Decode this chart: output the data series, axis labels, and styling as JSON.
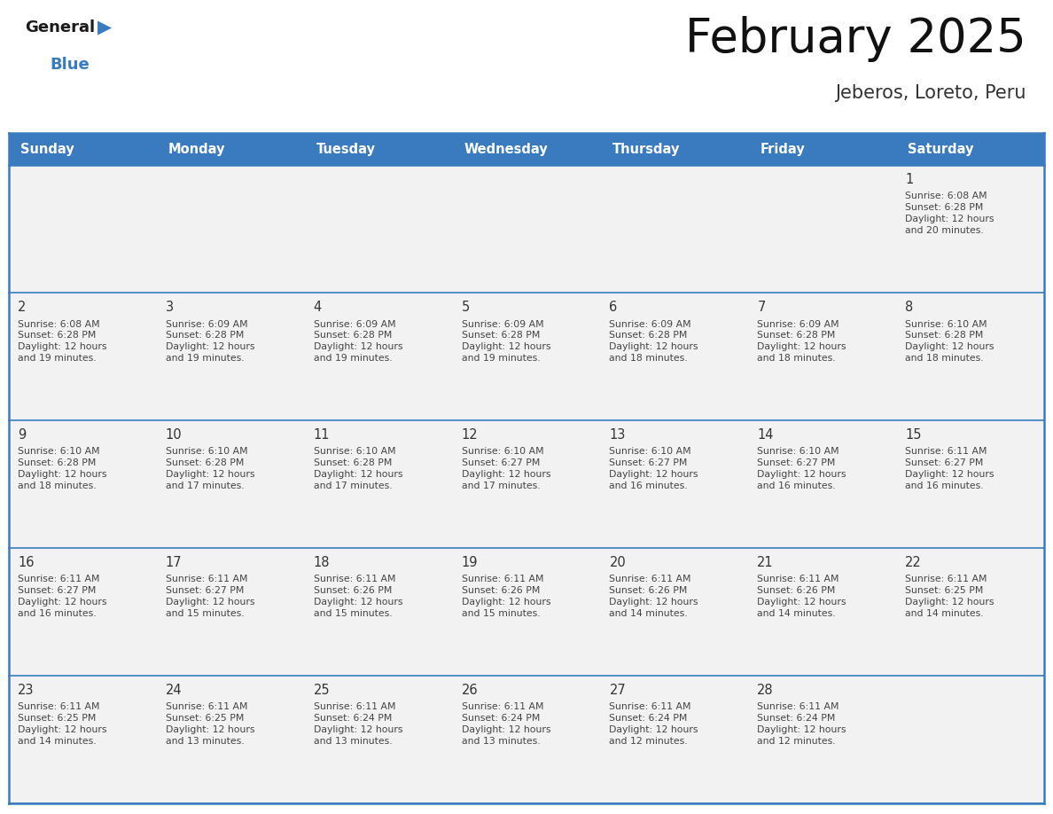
{
  "title": "February 2025",
  "subtitle": "Jeberos, Loreto, Peru",
  "header_bg": "#3a7abf",
  "header_text_color": "#ffffff",
  "cell_bg": "#f2f2f2",
  "cell_bg_alt": "#ffffff",
  "day_headers": [
    "Sunday",
    "Monday",
    "Tuesday",
    "Wednesday",
    "Thursday",
    "Friday",
    "Saturday"
  ],
  "border_color": "#3a7abf",
  "text_color": "#444444",
  "num_color": "#333333",
  "calendar": [
    [
      null,
      null,
      null,
      null,
      null,
      null,
      {
        "day": "1",
        "sunrise": "6:08 AM",
        "sunset": "6:28 PM",
        "daylight": "12 hours\nand 20 minutes."
      }
    ],
    [
      {
        "day": "2",
        "sunrise": "6:08 AM",
        "sunset": "6:28 PM",
        "daylight": "12 hours\nand 19 minutes."
      },
      {
        "day": "3",
        "sunrise": "6:09 AM",
        "sunset": "6:28 PM",
        "daylight": "12 hours\nand 19 minutes."
      },
      {
        "day": "4",
        "sunrise": "6:09 AM",
        "sunset": "6:28 PM",
        "daylight": "12 hours\nand 19 minutes."
      },
      {
        "day": "5",
        "sunrise": "6:09 AM",
        "sunset": "6:28 PM",
        "daylight": "12 hours\nand 19 minutes."
      },
      {
        "day": "6",
        "sunrise": "6:09 AM",
        "sunset": "6:28 PM",
        "daylight": "12 hours\nand 18 minutes."
      },
      {
        "day": "7",
        "sunrise": "6:09 AM",
        "sunset": "6:28 PM",
        "daylight": "12 hours\nand 18 minutes."
      },
      {
        "day": "8",
        "sunrise": "6:10 AM",
        "sunset": "6:28 PM",
        "daylight": "12 hours\nand 18 minutes."
      }
    ],
    [
      {
        "day": "9",
        "sunrise": "6:10 AM",
        "sunset": "6:28 PM",
        "daylight": "12 hours\nand 18 minutes."
      },
      {
        "day": "10",
        "sunrise": "6:10 AM",
        "sunset": "6:28 PM",
        "daylight": "12 hours\nand 17 minutes."
      },
      {
        "day": "11",
        "sunrise": "6:10 AM",
        "sunset": "6:28 PM",
        "daylight": "12 hours\nand 17 minutes."
      },
      {
        "day": "12",
        "sunrise": "6:10 AM",
        "sunset": "6:27 PM",
        "daylight": "12 hours\nand 17 minutes."
      },
      {
        "day": "13",
        "sunrise": "6:10 AM",
        "sunset": "6:27 PM",
        "daylight": "12 hours\nand 16 minutes."
      },
      {
        "day": "14",
        "sunrise": "6:10 AM",
        "sunset": "6:27 PM",
        "daylight": "12 hours\nand 16 minutes."
      },
      {
        "day": "15",
        "sunrise": "6:11 AM",
        "sunset": "6:27 PM",
        "daylight": "12 hours\nand 16 minutes."
      }
    ],
    [
      {
        "day": "16",
        "sunrise": "6:11 AM",
        "sunset": "6:27 PM",
        "daylight": "12 hours\nand 16 minutes."
      },
      {
        "day": "17",
        "sunrise": "6:11 AM",
        "sunset": "6:27 PM",
        "daylight": "12 hours\nand 15 minutes."
      },
      {
        "day": "18",
        "sunrise": "6:11 AM",
        "sunset": "6:26 PM",
        "daylight": "12 hours\nand 15 minutes."
      },
      {
        "day": "19",
        "sunrise": "6:11 AM",
        "sunset": "6:26 PM",
        "daylight": "12 hours\nand 15 minutes."
      },
      {
        "day": "20",
        "sunrise": "6:11 AM",
        "sunset": "6:26 PM",
        "daylight": "12 hours\nand 14 minutes."
      },
      {
        "day": "21",
        "sunrise": "6:11 AM",
        "sunset": "6:26 PM",
        "daylight": "12 hours\nand 14 minutes."
      },
      {
        "day": "22",
        "sunrise": "6:11 AM",
        "sunset": "6:25 PM",
        "daylight": "12 hours\nand 14 minutes."
      }
    ],
    [
      {
        "day": "23",
        "sunrise": "6:11 AM",
        "sunset": "6:25 PM",
        "daylight": "12 hours\nand 14 minutes."
      },
      {
        "day": "24",
        "sunrise": "6:11 AM",
        "sunset": "6:25 PM",
        "daylight": "12 hours\nand 13 minutes."
      },
      {
        "day": "25",
        "sunrise": "6:11 AM",
        "sunset": "6:24 PM",
        "daylight": "12 hours\nand 13 minutes."
      },
      {
        "day": "26",
        "sunrise": "6:11 AM",
        "sunset": "6:24 PM",
        "daylight": "12 hours\nand 13 minutes."
      },
      {
        "day": "27",
        "sunrise": "6:11 AM",
        "sunset": "6:24 PM",
        "daylight": "12 hours\nand 12 minutes."
      },
      {
        "day": "28",
        "sunrise": "6:11 AM",
        "sunset": "6:24 PM",
        "daylight": "12 hours\nand 12 minutes."
      },
      null
    ]
  ]
}
